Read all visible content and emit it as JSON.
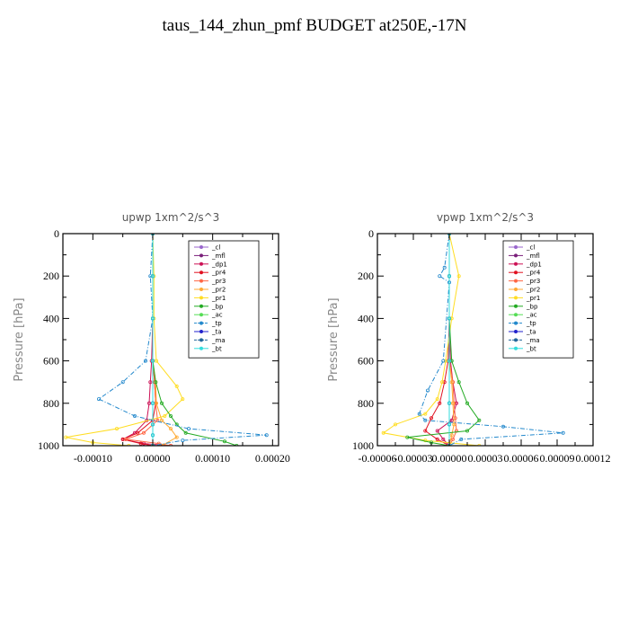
{
  "title": "taus_144_zhun_pmf  BUDGET at250E,-17N",
  "chart_data": [
    {
      "type": "line",
      "title": "upwp   1xm^2/s^3",
      "ylabel": "Pressure [hPa]",
      "xlim": [
        -0.00015,
        0.00021
      ],
      "ylim": [
        1000,
        0
      ],
      "xticks": [
        -0.0001,
        0,
        0.0001,
        0.0002
      ],
      "xtick_labels": [
        "-0.00010",
        "0.00000",
        "0.00010",
        "0.00020"
      ],
      "yticks": [
        0,
        200,
        400,
        600,
        800,
        1000
      ],
      "series": [
        {
          "name": "_cl",
          "color": "#9966cc",
          "x": [
            0,
            0,
            0,
            0,
            0,
            0
          ],
          "y": [
            0,
            200,
            400,
            600,
            800,
            1000
          ]
        },
        {
          "name": "_mfl",
          "color": "#7a1f7a",
          "x": [
            0,
            0,
            0,
            0,
            0,
            0
          ],
          "y": [
            0,
            200,
            400,
            600,
            800,
            1000
          ]
        },
        {
          "name": "_dp1",
          "color": "#cc1155",
          "x": [
            0,
            0,
            0,
            -2e-06,
            -4e-06,
            -6e-06,
            -1e-05,
            -3e-05,
            -5e-05,
            -1.5e-05,
            3e-05
          ],
          "y": [
            0,
            200,
            400,
            600,
            700,
            800,
            880,
            940,
            970,
            990,
            1000
          ]
        },
        {
          "name": "_pr4",
          "color": "#e01020",
          "x": [
            0,
            0,
            0,
            0,
            3e-06,
            5e-06,
            0,
            -2.5e-05,
            -5e-05,
            -2e-05,
            0
          ],
          "y": [
            0,
            200,
            400,
            600,
            700,
            800,
            880,
            940,
            970,
            990,
            1000
          ]
        },
        {
          "name": "_pr3",
          "color": "#ff6644",
          "x": [
            0,
            0,
            0,
            0,
            3e-06,
            5e-06,
            8e-06,
            -1.5e-05,
            -4.5e-05,
            1e-05,
            3e-05
          ],
          "y": [
            0,
            200,
            400,
            600,
            700,
            800,
            880,
            940,
            970,
            990,
            1000
          ]
        },
        {
          "name": "_pr2",
          "color": "#ffaa33",
          "x": [
            0,
            0,
            0,
            0,
            5e-06,
            6e-06,
            1.5e-05,
            3e-05,
            4e-05,
            1.5e-05
          ],
          "y": [
            0,
            200,
            400,
            600,
            700,
            800,
            880,
            920,
            960,
            1000
          ]
        },
        {
          "name": "_pr1",
          "color": "#ffdd22",
          "x": [
            0,
            2e-06,
            2e-06,
            6e-06,
            4e-05,
            5e-05,
            2e-05,
            -6e-05,
            -0.000145,
            -0.0001,
            -4e-05
          ],
          "y": [
            0,
            200,
            400,
            600,
            720,
            780,
            860,
            920,
            960,
            985,
            1000
          ]
        },
        {
          "name": "_bp",
          "color": "#22aa22",
          "x": [
            0,
            0,
            0,
            0,
            5e-06,
            1.5e-05,
            3e-05,
            4e-05,
            5.5e-05,
            0.00012,
            0.00014
          ],
          "y": [
            0,
            200,
            400,
            600,
            700,
            800,
            860,
            900,
            940,
            980,
            1000
          ]
        },
        {
          "name": "_ac",
          "color": "#55dd55",
          "x": [
            0,
            0,
            0,
            0,
            0,
            0,
            0,
            0
          ],
          "y": [
            0,
            200,
            400,
            600,
            800,
            900,
            950,
            1000
          ]
        },
        {
          "name": "_tp",
          "color": "#2288cc",
          "x": [
            0,
            -4e-06,
            0,
            -1.2e-05,
            -5e-05,
            -9e-05,
            -3e-05,
            6e-05,
            0.00019,
            5e-05,
            0
          ],
          "y": [
            0,
            200,
            400,
            600,
            700,
            780,
            860,
            920,
            950,
            975,
            1000
          ]
        },
        {
          "name": "_ta",
          "color": "#2222cc",
          "x": [
            0,
            0,
            0,
            0,
            0,
            0,
            0,
            0
          ],
          "y": [
            0,
            200,
            400,
            600,
            800,
            900,
            950,
            1000
          ]
        },
        {
          "name": "_ma",
          "color": "#226699",
          "x": [
            0,
            0,
            0,
            0,
            0,
            0,
            0,
            0
          ],
          "y": [
            0,
            200,
            400,
            600,
            800,
            900,
            950,
            1000
          ]
        },
        {
          "name": "_bt",
          "color": "#33dddd",
          "x": [
            0,
            0,
            0,
            0,
            0,
            0,
            0,
            0
          ],
          "y": [
            0,
            200,
            400,
            600,
            800,
            900,
            950,
            1000
          ]
        }
      ],
      "legend_placement": "top-right"
    },
    {
      "type": "line",
      "title": "vpwp   1xm^2/s^3",
      "ylabel": "Pressure [hPa]",
      "xlim": [
        -6e-05,
        0.00012
      ],
      "ylim": [
        1000,
        0
      ],
      "xticks": [
        -6e-05,
        -3e-05,
        0,
        3e-05,
        6e-05,
        9e-05,
        0.00012
      ],
      "xtick_labels": [
        "-0.00006",
        "-0.00003",
        "0.00000",
        "0.00003",
        "0.00006",
        "0.00009",
        "0.00012"
      ],
      "yticks": [
        0,
        200,
        400,
        600,
        800,
        1000
      ],
      "series": [
        {
          "name": "_cl",
          "color": "#9966cc",
          "x": [
            0,
            0,
            0,
            0,
            0,
            0
          ],
          "y": [
            0,
            200,
            400,
            600,
            800,
            1000
          ]
        },
        {
          "name": "_mfl",
          "color": "#7a1f7a",
          "x": [
            0,
            0,
            0,
            0,
            0,
            0
          ],
          "y": [
            0,
            200,
            400,
            600,
            800,
            1000
          ]
        },
        {
          "name": "_dp1",
          "color": "#cc1155",
          "x": [
            0,
            0,
            0,
            1e-06,
            3e-06,
            6e-06,
            2e-06,
            -1e-05,
            -5e-06,
            0
          ],
          "y": [
            0,
            200,
            400,
            600,
            700,
            800,
            880,
            930,
            970,
            1000
          ]
        },
        {
          "name": "_pr4",
          "color": "#e01020",
          "x": [
            0,
            0,
            0,
            -1e-06,
            -4e-06,
            -8e-06,
            -1.5e-05,
            -2e-05,
            -1e-05,
            0
          ],
          "y": [
            0,
            200,
            400,
            600,
            700,
            800,
            870,
            930,
            970,
            1000
          ]
        },
        {
          "name": "_pr3",
          "color": "#ff6644",
          "x": [
            0,
            0,
            0,
            0,
            3e-06,
            4e-06,
            5e-06,
            6e-06,
            3e-06,
            0
          ],
          "y": [
            0,
            200,
            400,
            600,
            700,
            800,
            870,
            930,
            970,
            1000
          ]
        },
        {
          "name": "_pr2",
          "color": "#ffaa33",
          "x": [
            0,
            0,
            0,
            0,
            2e-06,
            3e-06,
            4e-06,
            2e-06,
            0
          ],
          "y": [
            0,
            200,
            400,
            600,
            700,
            800,
            900,
            950,
            1000
          ]
        },
        {
          "name": "_pr1",
          "color": "#ffdd22",
          "x": [
            0,
            8e-06,
            2e-06,
            -3e-06,
            -6e-06,
            -1e-05,
            -2e-05,
            -4.5e-05,
            -5.5e-05,
            -2e-05,
            2.5e-05
          ],
          "y": [
            0,
            200,
            400,
            600,
            700,
            780,
            850,
            900,
            940,
            975,
            1000
          ]
        },
        {
          "name": "_bp",
          "color": "#22aa22",
          "x": [
            0,
            0,
            0,
            2e-06,
            8e-06,
            1.5e-05,
            2.5e-05,
            1.5e-05,
            -3.5e-05,
            -1.5e-05,
            0
          ],
          "y": [
            0,
            200,
            400,
            600,
            700,
            800,
            880,
            930,
            960,
            985,
            1000
          ]
        },
        {
          "name": "_ac",
          "color": "#55dd55",
          "x": [
            0,
            0,
            0,
            0,
            0,
            0,
            0
          ],
          "y": [
            0,
            200,
            400,
            600,
            800,
            900,
            1000
          ]
        },
        {
          "name": "_tp",
          "color": "#2288cc",
          "x": [
            0,
            -4e-06,
            -8e-06,
            0,
            -5e-06,
            -1.8e-05,
            -2.5e-05,
            -2e-05,
            4.5e-05,
            9.5e-05,
            1e-05,
            0
          ],
          "y": [
            0,
            160,
            200,
            230,
            600,
            740,
            850,
            880,
            910,
            940,
            970,
            1000
          ]
        },
        {
          "name": "_ta",
          "color": "#2222cc",
          "x": [
            0,
            0,
            0,
            0,
            0,
            0,
            0
          ],
          "y": [
            0,
            200,
            400,
            600,
            800,
            900,
            1000
          ]
        },
        {
          "name": "_ma",
          "color": "#226699",
          "x": [
            0,
            0,
            0,
            0,
            0,
            0,
            0
          ],
          "y": [
            0,
            200,
            400,
            600,
            800,
            900,
            1000
          ]
        },
        {
          "name": "_bt",
          "color": "#33dddd",
          "x": [
            0,
            0,
            0,
            0,
            0,
            0,
            0
          ],
          "y": [
            0,
            200,
            400,
            600,
            800,
            900,
            1000
          ]
        }
      ],
      "legend_placement": "top-right"
    }
  ]
}
